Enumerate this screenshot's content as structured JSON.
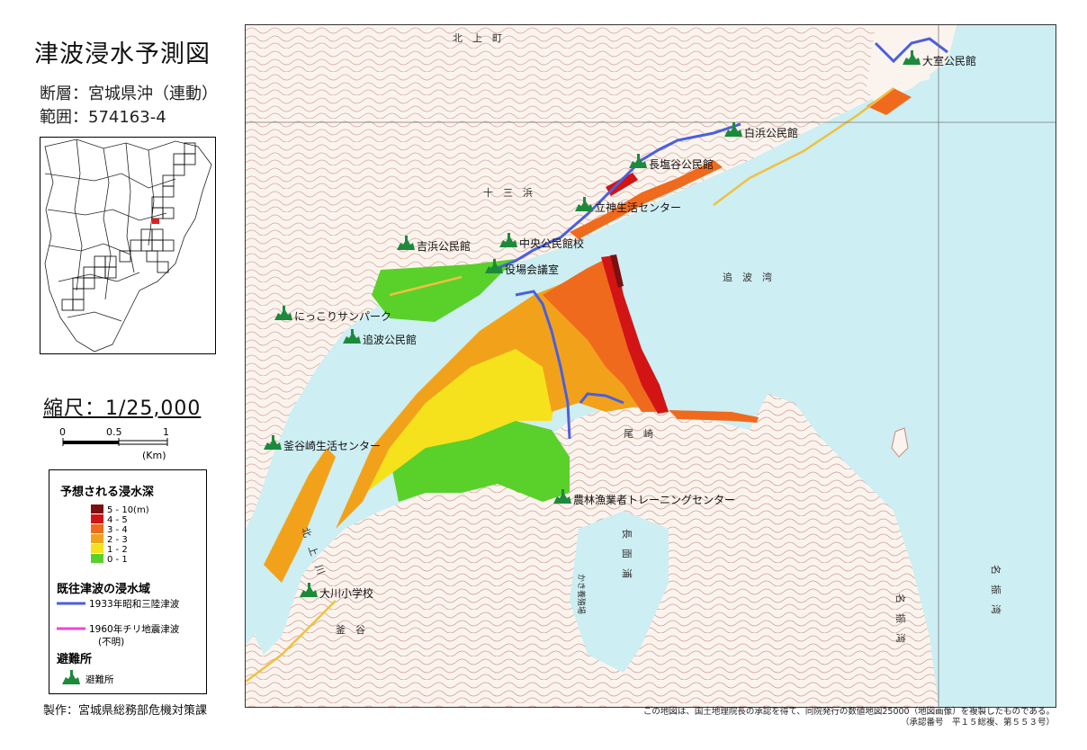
{
  "title": "津波浸水予測図",
  "fault": "断層：宮城県沖（連動）",
  "range": "範囲：574163-4",
  "scale": {
    "title": "縮尺：1/25,000",
    "ticks": [
      "0",
      "0.5",
      "1"
    ],
    "unit": "(Km)"
  },
  "legend": {
    "depth_title": "予想される浸水深",
    "depth_classes": [
      {
        "label": "5 - 10(m)",
        "color": "#7a1010"
      },
      {
        "label": "4 - 5",
        "color": "#d21414"
      },
      {
        "label": "3 - 4",
        "color": "#f06a1e"
      },
      {
        "label": "2 - 3",
        "color": "#f2a21a"
      },
      {
        "label": "1 - 2",
        "color": "#f5e21c"
      },
      {
        "label": "0 - 1",
        "color": "#5ad02a"
      }
    ],
    "past_title": "既往津波の浸水域",
    "past_items": [
      {
        "label": "1933年昭和三陸津波",
        "color": "#4a5fe0"
      },
      {
        "label": "1960年チリ地震津波",
        "sublabel": "(不明)",
        "color": "#ee44dd"
      }
    ],
    "shelter_title": "避難所",
    "shelter_item": "避難所"
  },
  "credit": "製作：宮城県総務部危機対策課",
  "copyright": [
    "この地図は、国土地理院長の承認を得て、同院発行の数値地図25000（地図画像）を複製したものである。",
    "（承認番号　平１５総複、第５５３号）"
  ],
  "shelters": [
    {
      "name": "大室公民館"
    },
    {
      "name": "白浜公民館"
    },
    {
      "name": "長塩谷公民館"
    },
    {
      "name": "立神生活センター"
    },
    {
      "name": "吉浜公民館"
    },
    {
      "name": "中央公民館校"
    },
    {
      "name": "役場会議室"
    },
    {
      "name": "にっこりサンパーク"
    },
    {
      "name": "追波公民館"
    },
    {
      "name": "釜谷崎生活センター"
    },
    {
      "name": "農林漁業者トレーニングセンター"
    },
    {
      "name": "大川小学校"
    }
  ],
  "place_labels": [
    {
      "text": "北　上　町"
    },
    {
      "text": "十　三　浜"
    },
    {
      "text": "追　波　湾"
    },
    {
      "text": "尾　崎"
    },
    {
      "text": "北　上　川"
    },
    {
      "text": "長　面　浦"
    },
    {
      "text": "名　振　湾"
    },
    {
      "text": "名　振　湾"
    },
    {
      "text": "釜　谷"
    },
    {
      "text": "かき養殖場"
    }
  ],
  "colors": {
    "sea": "#cdeef2",
    "land": "#fbf4ee",
    "contour": "#c98a7e",
    "road": "#f0c040"
  }
}
